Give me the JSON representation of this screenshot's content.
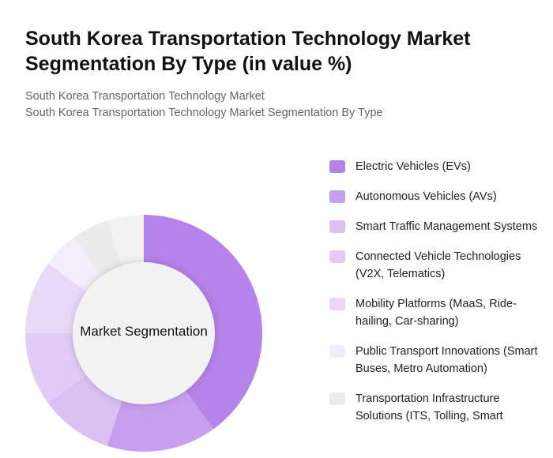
{
  "header": {
    "title": "South Korea Transportation Technology Market Segmentation By Type (in value %)",
    "subtitle1": "South Korea Transportation Technology Market",
    "subtitle2": "South Korea Transportation Technology Market Segmentation By Type"
  },
  "chart_data": {
    "type": "pie",
    "donut": true,
    "center_label": "Market Segmentation",
    "legend_position": "right",
    "categories": [
      "Electric Vehicles (EVs)",
      "Autonomous Vehicles (AVs)",
      "Smart Traffic Management Systems",
      "Connected Vehicle Technologies (V2X, Telematics)",
      "Mobility Platforms (MaaS, Ride-hailing, Car-sharing)",
      "Public Transport Innovations (Smart Buses, Metro Automation)",
      "Transportation Infrastructure Solutions (ITS, Tolling, Smart",
      ""
    ],
    "values": [
      40,
      15,
      10,
      10,
      10,
      5,
      5,
      5
    ],
    "colors": [
      "#b583ea",
      "#c89eee",
      "#dbc0f4",
      "#e2cbf6",
      "#ead8f8",
      "#f3ecfb",
      "#ebebeb",
      "#f2f2f2"
    ]
  }
}
